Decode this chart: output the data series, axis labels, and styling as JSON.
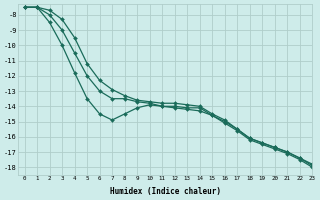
{
  "xlabel": "Humidex (Indice chaleur)",
  "bg_color": "#ceecea",
  "grid_color": "#b0ceca",
  "line_color": "#1a6b5a",
  "xlim": [
    -0.5,
    23
  ],
  "ylim": [
    -18.5,
    -7.3
  ],
  "xticks": [
    0,
    1,
    2,
    3,
    4,
    5,
    6,
    7,
    8,
    9,
    10,
    11,
    12,
    13,
    14,
    15,
    16,
    17,
    18,
    19,
    20,
    21,
    22,
    23
  ],
  "yticks": [
    -8,
    -9,
    -10,
    -11,
    -12,
    -13,
    -14,
    -15,
    -16,
    -17,
    -18
  ],
  "series1_x": [
    0,
    1,
    2,
    3,
    4,
    5,
    6,
    7,
    8,
    9,
    10,
    11,
    12,
    13,
    14,
    15,
    16,
    17,
    18,
    19,
    20,
    21,
    22,
    23
  ],
  "series1_y": [
    -7.5,
    -7.5,
    -7.7,
    -8.3,
    -9.5,
    -11.2,
    -12.3,
    -12.9,
    -13.3,
    -13.6,
    -13.7,
    -13.8,
    -13.8,
    -13.9,
    -14.0,
    -14.5,
    -14.9,
    -15.5,
    -16.1,
    -16.4,
    -16.7,
    -17.0,
    -17.4,
    -17.9
  ],
  "series2_x": [
    0,
    1,
    2,
    3,
    4,
    5,
    6,
    7,
    8,
    9,
    10,
    11,
    12,
    13,
    14,
    15,
    16,
    17,
    18,
    19,
    20,
    21,
    22,
    23
  ],
  "series2_y": [
    -7.5,
    -7.5,
    -8.5,
    -10.0,
    -11.8,
    -13.5,
    -14.5,
    -14.9,
    -14.5,
    -14.1,
    -13.9,
    -14.0,
    -14.1,
    -14.2,
    -14.3,
    -14.6,
    -15.1,
    -15.6,
    -16.2,
    -16.5,
    -16.8,
    -17.1,
    -17.5,
    -18.0
  ],
  "series3_x": [
    0,
    1,
    2,
    3,
    4,
    5,
    6,
    7,
    8,
    9,
    10,
    11,
    12,
    13,
    14,
    15,
    16,
    17,
    18,
    19,
    20,
    21,
    22,
    23
  ],
  "series3_y": [
    -7.5,
    -7.5,
    -8.0,
    -9.0,
    -10.5,
    -12.0,
    -13.0,
    -13.5,
    -13.5,
    -13.7,
    -13.8,
    -14.0,
    -14.0,
    -14.1,
    -14.1,
    -14.6,
    -15.0,
    -15.5,
    -16.1,
    -16.4,
    -16.7,
    -17.0,
    -17.4,
    -17.8
  ]
}
